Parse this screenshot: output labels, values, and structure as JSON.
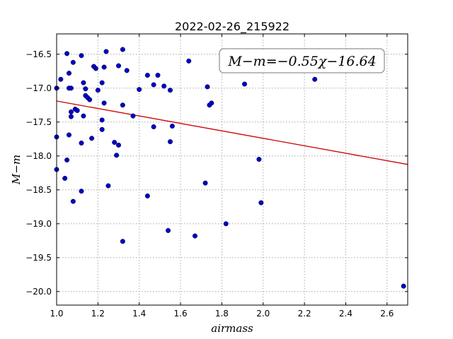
{
  "chart_data": {
    "type": "scatter",
    "title": "2022-02-26_215922",
    "xlabel": "airmass",
    "ylabel": "M−m",
    "xlim": [
      1.0,
      2.7
    ],
    "ylim": [
      -20.2,
      -16.2
    ],
    "y_inverted": true,
    "grid": true,
    "x_ticks": [
      "1.0",
      "1.2",
      "1.4",
      "1.6",
      "1.8",
      "2.0",
      "2.2",
      "2.4",
      "2.6"
    ],
    "y_ticks": [
      "−16.5",
      "−17.0",
      "−17.5",
      "−18.0",
      "−18.5",
      "−19.0",
      "−19.5",
      "−20.0"
    ],
    "x_tick_values": [
      1.0,
      1.2,
      1.4,
      1.6,
      1.8,
      2.0,
      2.2,
      2.4,
      2.6
    ],
    "y_tick_values": [
      -16.5,
      -17.0,
      -17.5,
      -18.0,
      -18.5,
      -19.0,
      -19.5,
      -20.0
    ],
    "annotation": "M−m=−0.55χ−16.64",
    "point_color": "#0000c8",
    "fit_color": "#cc0000",
    "fit": {
      "slope": -0.55,
      "intercept": -16.64
    },
    "series": [
      {
        "points": [
          [
            1.0,
            -17.0
          ],
          [
            1.0,
            -17.72
          ],
          [
            1.0,
            -18.2
          ],
          [
            1.02,
            -16.87
          ],
          [
            1.04,
            -18.33
          ],
          [
            1.05,
            -16.49
          ],
          [
            1.05,
            -18.06
          ],
          [
            1.06,
            -16.78
          ],
          [
            1.06,
            -17.0
          ],
          [
            1.06,
            -17.69
          ],
          [
            1.07,
            -17.35
          ],
          [
            1.07,
            -17.42
          ],
          [
            1.07,
            -17.0
          ],
          [
            1.08,
            -18.67
          ],
          [
            1.08,
            -16.62
          ],
          [
            1.09,
            -17.31
          ],
          [
            1.1,
            -17.33
          ],
          [
            1.12,
            -16.52
          ],
          [
            1.12,
            -17.81
          ],
          [
            1.12,
            -18.52
          ],
          [
            1.13,
            -16.92
          ],
          [
            1.13,
            -17.41
          ],
          [
            1.14,
            -17.01
          ],
          [
            1.14,
            -17.11
          ],
          [
            1.15,
            -17.14
          ],
          [
            1.16,
            -17.17
          ],
          [
            1.17,
            -17.74
          ],
          [
            1.18,
            -16.68
          ],
          [
            1.19,
            -16.71
          ],
          [
            1.2,
            -17.03
          ],
          [
            1.22,
            -16.92
          ],
          [
            1.22,
            -17.47
          ],
          [
            1.22,
            -17.61
          ],
          [
            1.23,
            -17.22
          ],
          [
            1.23,
            -16.69
          ],
          [
            1.24,
            -16.46
          ],
          [
            1.25,
            -18.44
          ],
          [
            1.28,
            -17.8
          ],
          [
            1.29,
            -17.99
          ],
          [
            1.3,
            -17.84
          ],
          [
            1.3,
            -16.67
          ],
          [
            1.32,
            -16.43
          ],
          [
            1.32,
            -17.25
          ],
          [
            1.32,
            -19.26
          ],
          [
            1.34,
            -16.74
          ],
          [
            1.37,
            -17.41
          ],
          [
            1.4,
            -17.02
          ],
          [
            1.44,
            -16.81
          ],
          [
            1.44,
            -18.59
          ],
          [
            1.47,
            -17.57
          ],
          [
            1.47,
            -16.95
          ],
          [
            1.49,
            -16.81
          ],
          [
            1.52,
            -16.97
          ],
          [
            1.54,
            -19.1
          ],
          [
            1.55,
            -17.03
          ],
          [
            1.55,
            -17.79
          ],
          [
            1.56,
            -17.56
          ],
          [
            1.64,
            -16.6
          ],
          [
            1.67,
            -19.18
          ],
          [
            1.72,
            -18.4
          ],
          [
            1.73,
            -16.98
          ],
          [
            1.74,
            -17.25
          ],
          [
            1.75,
            -17.22
          ],
          [
            1.82,
            -19.0
          ],
          [
            1.91,
            -16.94
          ],
          [
            1.98,
            -18.05
          ],
          [
            1.99,
            -18.69
          ],
          [
            2.25,
            -16.87
          ],
          [
            2.68,
            -19.92
          ]
        ]
      }
    ]
  }
}
